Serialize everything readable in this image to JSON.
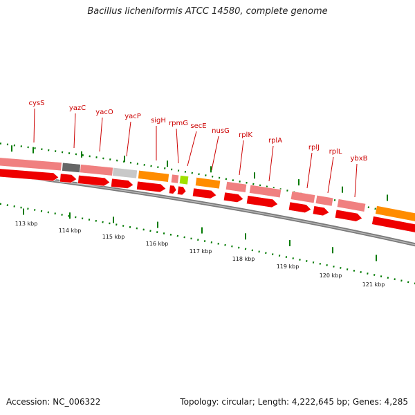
{
  "title": "Bacillus licheniformis ATCC 14580, complete genome",
  "footer": {
    "accession": "Accession: NC_006322",
    "summary": "Topology: circular; Length: 4,222,645 bp; Genes: 4,285"
  },
  "colors": {
    "cds": "#ee0000",
    "gene": "#f08080",
    "rrna": "#ff8c00",
    "trna": "#a0e000",
    "pseudo": "#666666",
    "misc": "#c8c8c8",
    "backbone": "#808080",
    "tick": "#007a00",
    "label": "#cc0000"
  },
  "legend_note": "",
  "scale_labels": [
    "113 kbp",
    "114 kbp",
    "115 kbp",
    "116 kbp",
    "117 kbp",
    "118 kbp",
    "119 kbp",
    "120 kbp",
    "121 kbp"
  ],
  "gene_labels": [
    "cysS",
    "yazC",
    "yacO",
    "yacP",
    "sigH",
    "rpmG",
    "secE",
    "nusG",
    "rplK",
    "rplA",
    "rplJ",
    "rplL",
    "ybxB"
  ]
}
